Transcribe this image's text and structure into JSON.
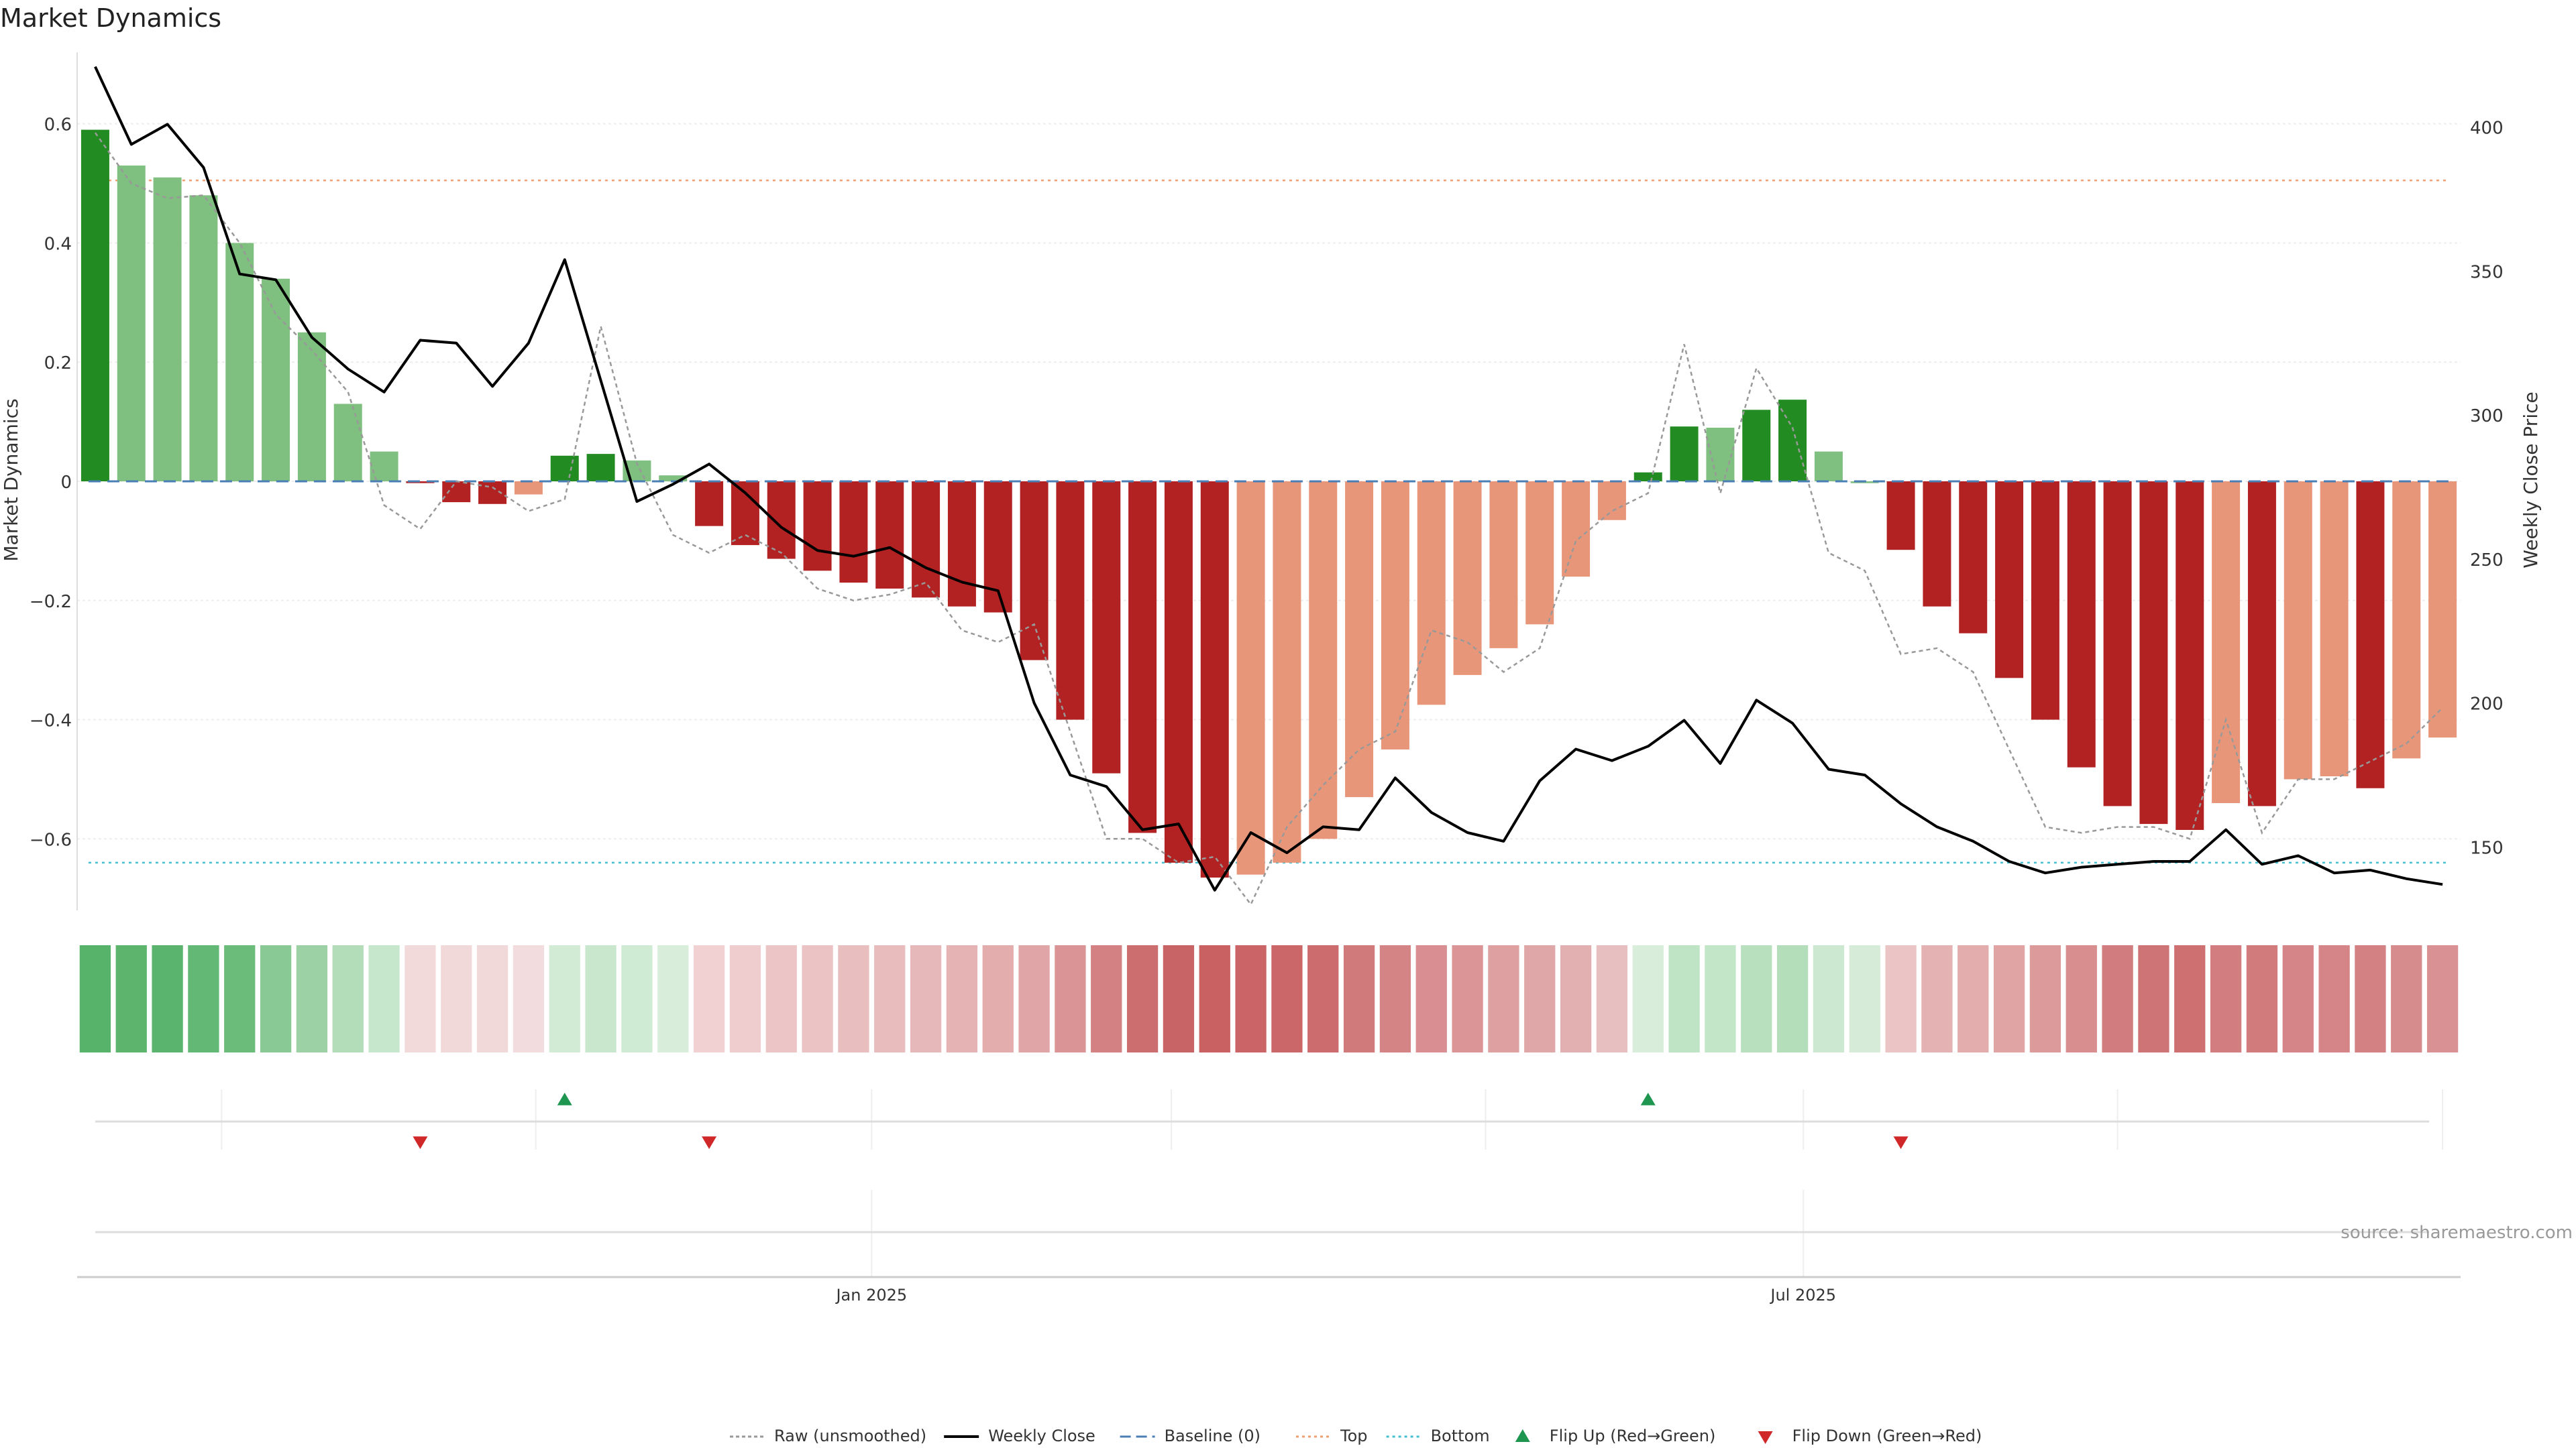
{
  "chart_data": {
    "type": "bar",
    "title": "Market Dynamics",
    "ylabel": "Market Dynamics",
    "y2label": "Weekly Close Price",
    "ylim": [
      -0.72,
      0.72
    ],
    "y2lim": [
      128,
      426
    ],
    "yticks": [
      0.6,
      0.4,
      0.2,
      0,
      -0.2,
      -0.4,
      -0.6
    ],
    "yticklabels": [
      "0.6",
      "0.4",
      "0.2",
      "0",
      "−0.2",
      "−0.4",
      "−0.6"
    ],
    "y2ticks": [
      400,
      350,
      300,
      250,
      200,
      150
    ],
    "xticks": [
      {
        "label": "Jan 2025",
        "index": 21.5
      },
      {
        "label": "Jul 2025",
        "index": 47.3
      }
    ],
    "xlim": [
      -0.5,
      65.5
    ],
    "top_line": 0.505,
    "bottom_line": -0.64,
    "bar_values": [
      0.59,
      0.53,
      0.51,
      0.48,
      0.4,
      0.34,
      0.25,
      0.13,
      0.05,
      -0.003,
      -0.035,
      -0.038,
      -0.022,
      0.043,
      0.046,
      0.035,
      0.01,
      -0.075,
      -0.107,
      -0.13,
      -0.15,
      -0.17,
      -0.18,
      -0.195,
      -0.21,
      -0.22,
      -0.3,
      -0.4,
      -0.49,
      -0.59,
      -0.64,
      -0.665,
      -0.66,
      -0.64,
      -0.6,
      -0.53,
      -0.45,
      -0.375,
      -0.325,
      -0.28,
      -0.24,
      -0.16,
      -0.065,
      0.015,
      0.092,
      0.09,
      0.12,
      0.137,
      0.05,
      -0.003,
      -0.115,
      -0.21,
      -0.255,
      -0.33,
      -0.4,
      -0.48,
      -0.545,
      -0.575,
      -0.585,
      -0.54,
      -0.545,
      -0.5,
      -0.495,
      -0.515,
      -0.465,
      -0.43
    ],
    "bar_categories": [
      "strong-up",
      "weak-up",
      "weak-up",
      "weak-up",
      "weak-up",
      "weak-up",
      "weak-up",
      "weak-up",
      "weak-up",
      "strong-down",
      "strong-down",
      "strong-down",
      "weak-down",
      "strong-up",
      "strong-up",
      "weak-up",
      "weak-up",
      "strong-down",
      "strong-down",
      "strong-down",
      "strong-down",
      "strong-down",
      "strong-down",
      "strong-down",
      "strong-down",
      "strong-down",
      "strong-down",
      "strong-down",
      "strong-down",
      "strong-down",
      "strong-down",
      "strong-down",
      "weak-down",
      "weak-down",
      "weak-down",
      "weak-down",
      "weak-down",
      "weak-down",
      "weak-down",
      "weak-down",
      "weak-down",
      "weak-down",
      "weak-down",
      "strong-up",
      "strong-up",
      "weak-up",
      "strong-up",
      "strong-up",
      "weak-up",
      "weak-up",
      "strong-down",
      "strong-down",
      "strong-down",
      "strong-down",
      "strong-down",
      "strong-down",
      "strong-down",
      "strong-down",
      "strong-down",
      "weak-down",
      "strong-down",
      "weak-down",
      "weak-down",
      "strong-down",
      "weak-down",
      "weak-down"
    ],
    "raw_values": [
      0.585,
      0.5,
      0.475,
      0.48,
      0.4,
      0.28,
      0.22,
      0.15,
      -0.04,
      -0.08,
      0.0,
      -0.01,
      -0.05,
      -0.03,
      0.26,
      0.03,
      -0.09,
      -0.12,
      -0.09,
      -0.12,
      -0.18,
      -0.2,
      -0.19,
      -0.17,
      -0.25,
      -0.27,
      -0.24,
      -0.42,
      -0.6,
      -0.6,
      -0.64,
      -0.63,
      -0.71,
      -0.58,
      -0.51,
      -0.45,
      -0.42,
      -0.25,
      -0.27,
      -0.32,
      -0.28,
      -0.1,
      -0.05,
      -0.02,
      0.23,
      -0.02,
      0.19,
      0.09,
      -0.12,
      -0.15,
      -0.29,
      -0.28,
      -0.32,
      -0.45,
      -0.58,
      -0.59,
      -0.58,
      -0.58,
      -0.6,
      -0.4,
      -0.59,
      -0.5,
      -0.5,
      -0.47,
      -0.44,
      -0.38
    ],
    "close_values": [
      421,
      394,
      401,
      386,
      349,
      347,
      327,
      316,
      308,
      326,
      325,
      310,
      325,
      354,
      312,
      270,
      276,
      283,
      273,
      261,
      253,
      251,
      254,
      247,
      242,
      239,
      200,
      175,
      171,
      156,
      158,
      135,
      155,
      148,
      157,
      156,
      174,
      162,
      155,
      152,
      173,
      184,
      180,
      185,
      194,
      179,
      201,
      193,
      177,
      175,
      165,
      157,
      152,
      145,
      141,
      143,
      144,
      145,
      145,
      156,
      144,
      147,
      141,
      142,
      139,
      137
    ],
    "heat_colors": [
      "#57b26a",
      "#5cb46d",
      "#5bb46d",
      "#62b874",
      "#6bbc7a",
      "#89c995",
      "#9bd1a5",
      "#b3ddb9",
      "#c7e7cc",
      "#f2d9da",
      "#f1d8d9",
      "#f1d8d9",
      "#f3dcdd",
      "#d2ebd5",
      "#c8e7cd",
      "#d0ebd4",
      "#d8eedb",
      "#f1d1d2",
      "#efcccd",
      "#ecc6c7",
      "#ebc3c4",
      "#e9bebf",
      "#e8bbbc",
      "#e7b8b9",
      "#e5b3b4",
      "#e3adae",
      "#e0a5a6",
      "#da9496",
      "#d38183",
      "#cc6e70",
      "#c96466",
      "#c96163",
      "#ca6466",
      "#cb6769",
      "#cd6c6e",
      "#d17a7c",
      "#d58486",
      "#d98f91",
      "#db9597",
      "#dea0a1",
      "#e0a7a8",
      "#e3b0b1",
      "#e8bfc0",
      "#d8eedb",
      "#bfe3c5",
      "#c3e5c8",
      "#b8dfbe",
      "#b4ddba",
      "#cde8d1",
      "#d6ecd9",
      "#ebc4c5",
      "#e5b2b3",
      "#e3adae",
      "#e0a4a5",
      "#dc9a9b",
      "#d88d8e",
      "#d17c7e",
      "#cf7476",
      "#ce7072",
      "#d27d7f",
      "#d17b7d",
      "#d58587",
      "#d58587",
      "#d38183",
      "#d68b8d",
      "#d99193"
    ],
    "flips_up": [
      13,
      43
    ],
    "flips_down": [
      9,
      17,
      50
    ],
    "source": "source: sharemaestro.com",
    "legend": [
      {
        "label": "Raw (unsmoothed)",
        "kind": "raw"
      },
      {
        "label": "Weekly Close",
        "kind": "close"
      },
      {
        "label": "Baseline (0)",
        "kind": "baseline"
      },
      {
        "label": "Top",
        "kind": "top"
      },
      {
        "label": "Bottom",
        "kind": "bottom"
      },
      {
        "label": "Flip Up (Red→Green)",
        "kind": "flipup"
      },
      {
        "label": "Flip Down (Green→Red)",
        "kind": "flipdown"
      }
    ]
  },
  "colors": {
    "strong_up": "#228b22",
    "weak_up": "#7fbf7f",
    "strong_down": "#b22222",
    "weak_down": "#e8967a",
    "close_line": "#000000",
    "raw_line": "#999999",
    "baseline": "#4a7fb5",
    "top_line": "#f0a070",
    "bottom_line": "#40c0d0",
    "flip_up_marker": "#1e9650",
    "flip_down_marker": "#d02828"
  }
}
